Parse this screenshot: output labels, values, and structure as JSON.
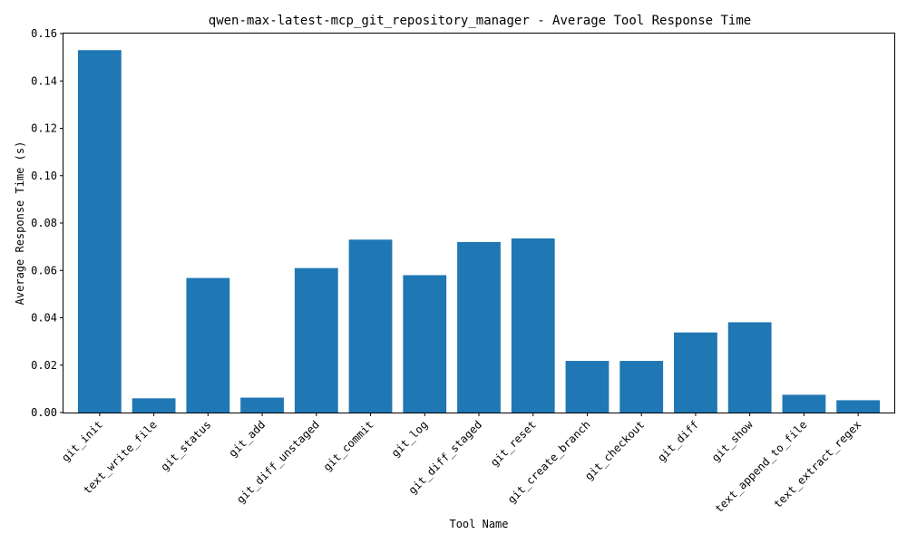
{
  "chart_data": {
    "type": "bar",
    "title": "qwen-max-latest-mcp_git_repository_manager - Average Tool Response Time",
    "xlabel": "Tool Name",
    "ylabel": "Average Response Time (s)",
    "ylim": [
      0,
      0.16
    ],
    "yticks": [
      "0.00",
      "0.02",
      "0.04",
      "0.06",
      "0.08",
      "0.10",
      "0.12",
      "0.14",
      "0.16"
    ],
    "categories": [
      "git_init",
      "text_write_file",
      "git_status",
      "git_add",
      "git_diff_unstaged",
      "git_commit",
      "git_log",
      "git_diff_staged",
      "git_reset",
      "git_create_branch",
      "git_checkout",
      "git_diff",
      "git_show",
      "text_append_to_file",
      "text_extract_regex"
    ],
    "values": [
      0.153,
      0.006,
      0.0568,
      0.0063,
      0.061,
      0.073,
      0.058,
      0.072,
      0.0735,
      0.0218,
      0.0218,
      0.0338,
      0.0381,
      0.0075,
      0.0052
    ],
    "bar_color": "#1f77b4",
    "grid": false,
    "legend": "none"
  }
}
